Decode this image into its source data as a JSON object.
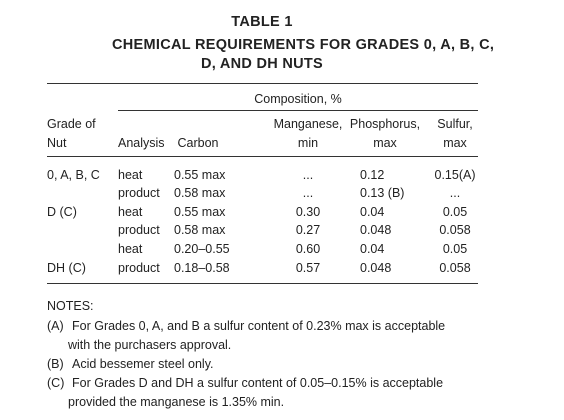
{
  "title": [
    "TABLE 1",
    "CHEMICAL REQUIREMENTS FOR GRADES 0, A, B, C,",
    "D, AND DH NUTS"
  ],
  "table": {
    "group_header": "Composition, %",
    "headers": [
      [
        "Grade of",
        "Nut"
      ],
      [
        "Analysis"
      ],
      [
        "Carbon"
      ],
      [
        "Manganese,",
        "min"
      ],
      [
        "Phosphorus,",
        "max"
      ],
      [
        "Sulfur,",
        "max"
      ]
    ],
    "rows": [
      [
        "0, A, B, C",
        "heat",
        "0.55 max",
        "...",
        "0.12",
        "0.15(A)"
      ],
      [
        null,
        "product",
        "0.58 max",
        "...",
        "0.13 (B)",
        "..."
      ],
      [
        "D (C)",
        "heat",
        "0.55 max",
        "0.30",
        "0.04",
        "0.05"
      ],
      [
        null,
        "product",
        "0.58 max",
        "0.27",
        "0.048",
        "0.058"
      ],
      [
        null,
        "heat",
        "0.20–0.55",
        "0.60",
        "0.04",
        "0.05"
      ],
      [
        "DH (C)",
        "product",
        "0.18–0.58",
        "0.57",
        "0.048",
        "0.058"
      ]
    ]
  },
  "notes": {
    "heading": "NOTES:",
    "items": [
      {
        "label": "(A)",
        "lines": [
          "For Grades 0, A, and B a sulfur content of 0.23% max is acceptable",
          "with the purchasers approval."
        ]
      },
      {
        "label": "(B)",
        "lines": [
          "Acid bessemer steel only."
        ]
      },
      {
        "label": "(C)",
        "lines": [
          "For Grades D and DH a sulfur content of 0.05–0.15% is acceptable",
          "provided the manganese is 1.35% min."
        ]
      }
    ]
  }
}
